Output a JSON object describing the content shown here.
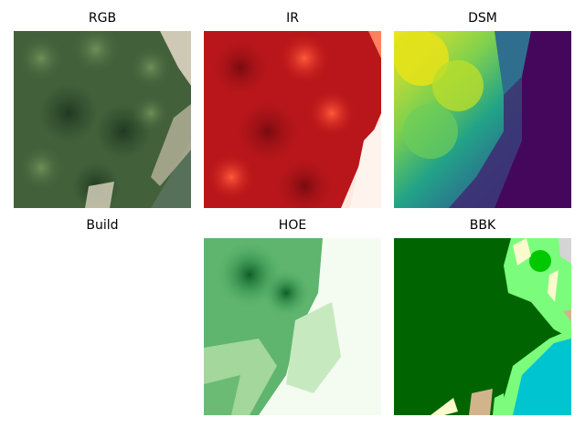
{
  "panels": [
    {
      "id": "rgb",
      "title": "RGB"
    },
    {
      "id": "ir",
      "title": "IR"
    },
    {
      "id": "dsm",
      "title": "DSM"
    },
    {
      "id": "build",
      "title": "Build"
    },
    {
      "id": "hoe",
      "title": "HOE"
    },
    {
      "id": "bbk",
      "title": "BBK"
    }
  ],
  "colors": {
    "rgb_forest": "#3f5b38",
    "ir_red": "#c41a1a",
    "dsm_high": "#e8e419",
    "dsm_low": "#44045a",
    "hoe_dark": "#0b5a24",
    "hoe_light": "#f4fbf1",
    "bbk_forest": "#006400",
    "bbk_light_green": "#7cfc7c",
    "bbk_water": "#00c5d1",
    "bbk_sand": "#d2b48c",
    "bbk_cream": "#fafacc",
    "bbk_grey": "#d4d4d4"
  }
}
